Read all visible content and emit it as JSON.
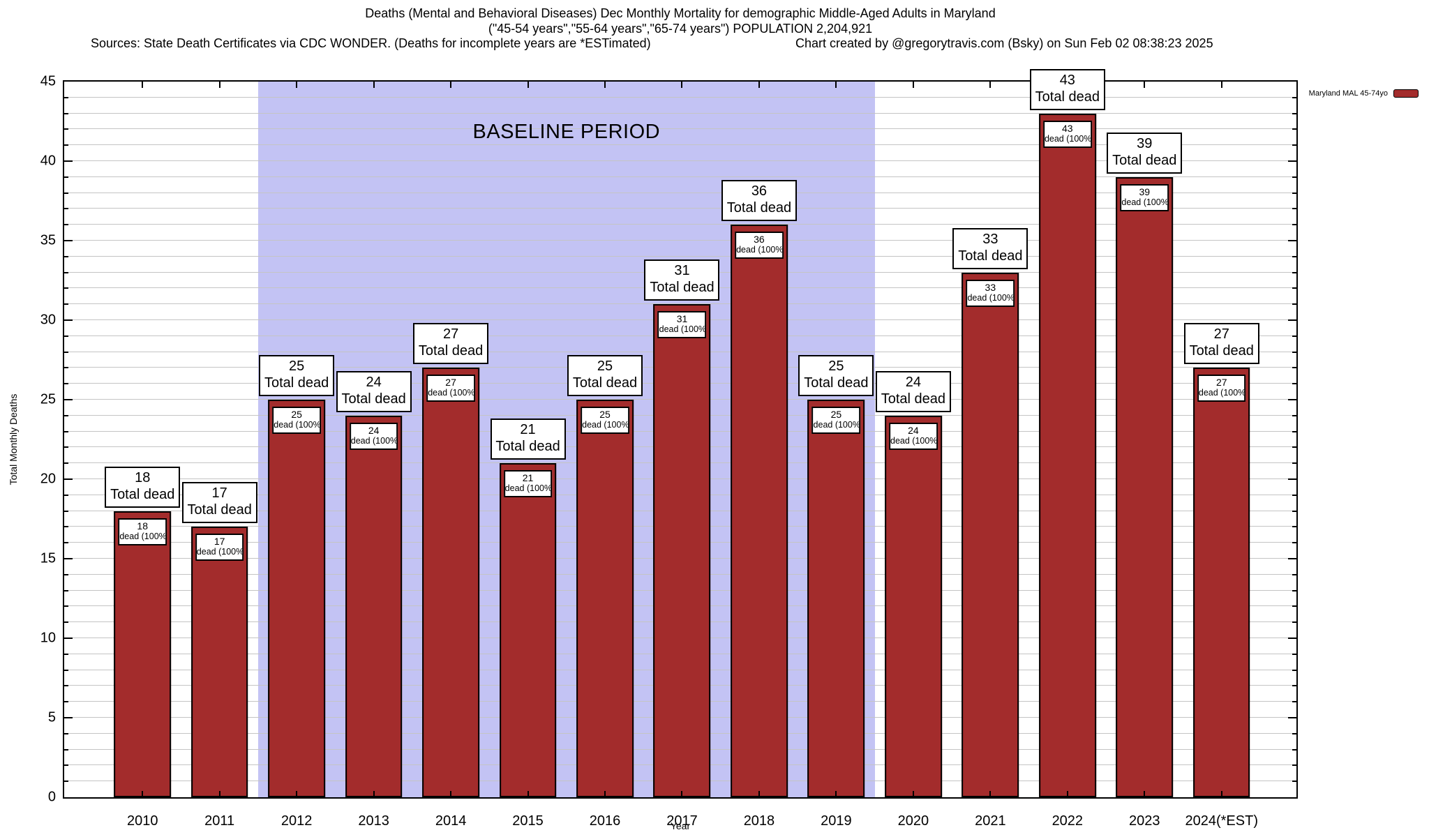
{
  "chart_data": {
    "type": "bar",
    "title": "Deaths (Mental and Behavioral Diseases) Dec Monthly Mortality for demographic Middle-Aged Adults in Maryland",
    "subtitle": "(\"45-54 years\",\"55-64 years\",\"65-74 years\") POPULATION 2,204,921",
    "source_note": "Sources: State Death Certificates via CDC WONDER. (Deaths for incomplete years are *ESTimated)",
    "credit_note": "Chart created by @gregorytravis.com (Bsky) on Sun Feb 02 08:38:23 2025",
    "categories": [
      "2010",
      "2011",
      "2012",
      "2013",
      "2014",
      "2015",
      "2016",
      "2017",
      "2018",
      "2019",
      "2020",
      "2021",
      "2022",
      "2023",
      "2024(*EST)"
    ],
    "series": [
      {
        "name": "Maryland MAL 45-74yo",
        "values": [
          18,
          17,
          25,
          24,
          27,
          21,
          25,
          31,
          36,
          25,
          24,
          33,
          43,
          39,
          27
        ]
      }
    ],
    "bar_above_label": "Total dead",
    "bar_inner_label": "dead (100%)",
    "xlabel": "Year",
    "ylabel": "Total Monthly Deaths",
    "ylim": [
      0,
      45
    ],
    "ytick_step": 5,
    "minor_tick_step": 1,
    "grid": true,
    "legend_position": "top-right",
    "baseline_region": {
      "label": "BASELINE PERIOD",
      "from": "2012",
      "to": "2019"
    },
    "colors": {
      "bar": "#a32c2c",
      "bar_border": "#000000",
      "baseline_region": "#c3c3f4",
      "gridline": "#c4c4c4"
    }
  }
}
